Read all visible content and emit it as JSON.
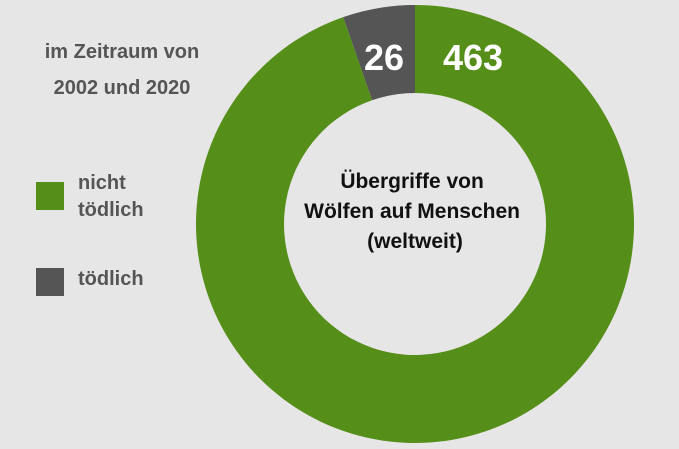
{
  "subtitle_lines": [
    "im Zeitraum von",
    "2002 und 2020"
  ],
  "chart_data": {
    "type": "pie",
    "variant": "donut",
    "center_title_lines": [
      "Übergriffe von",
      "Wölfen auf Menschen",
      "(weltweit)"
    ],
    "slices": [
      {
        "label": "tödlich",
        "value": 26,
        "color": "#555555"
      },
      {
        "label": "nicht tödlich",
        "value": 463,
        "color": "#558e18"
      }
    ],
    "legend": {
      "placement": "left"
    }
  },
  "legend": {
    "nonfatal_lines": [
      "nicht",
      "tödlich"
    ],
    "fatal_label": "tödlich"
  },
  "colors": {
    "background": "#e6e6e6",
    "nonfatal": "#558e18",
    "fatal": "#555555",
    "text": "#555555"
  }
}
